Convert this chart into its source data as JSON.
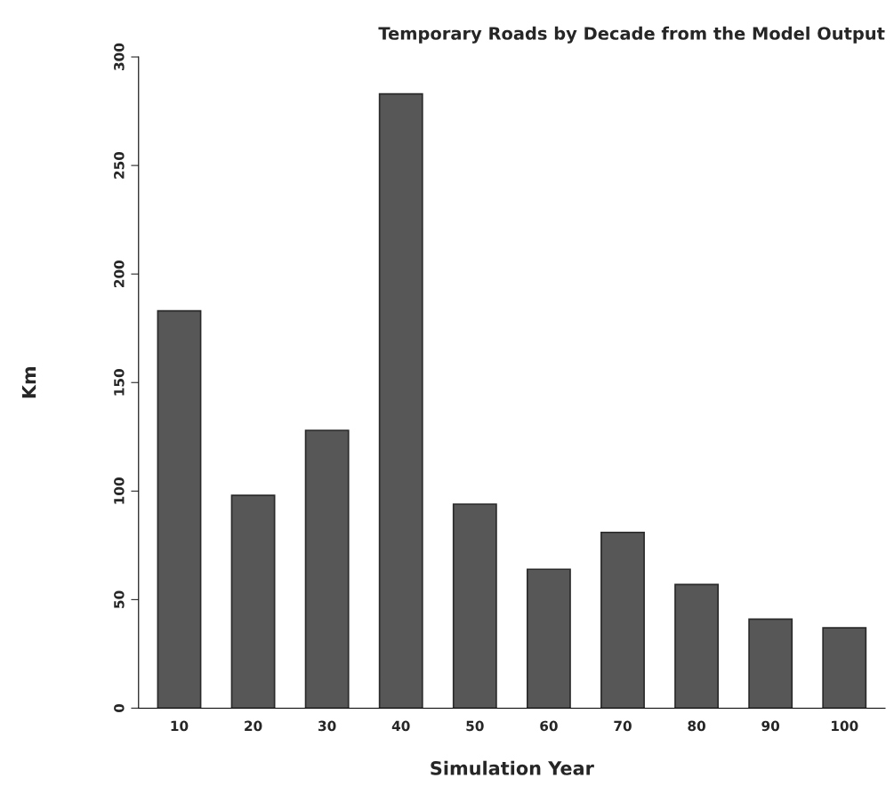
{
  "chart_data": {
    "type": "bar",
    "title": "Temporary Roads by Decade from the Model Output",
    "xlabel": "Simulation Year",
    "ylabel": "Km",
    "categories": [
      "10",
      "20",
      "30",
      "40",
      "50",
      "60",
      "70",
      "80",
      "90",
      "100"
    ],
    "values": [
      183,
      98,
      128,
      283,
      94,
      64,
      81,
      57,
      41,
      37
    ],
    "color": "#575757",
    "ylim": [
      0,
      300
    ],
    "yticks": [
      0,
      50,
      100,
      150,
      200,
      250,
      300
    ],
    "grid": false
  }
}
